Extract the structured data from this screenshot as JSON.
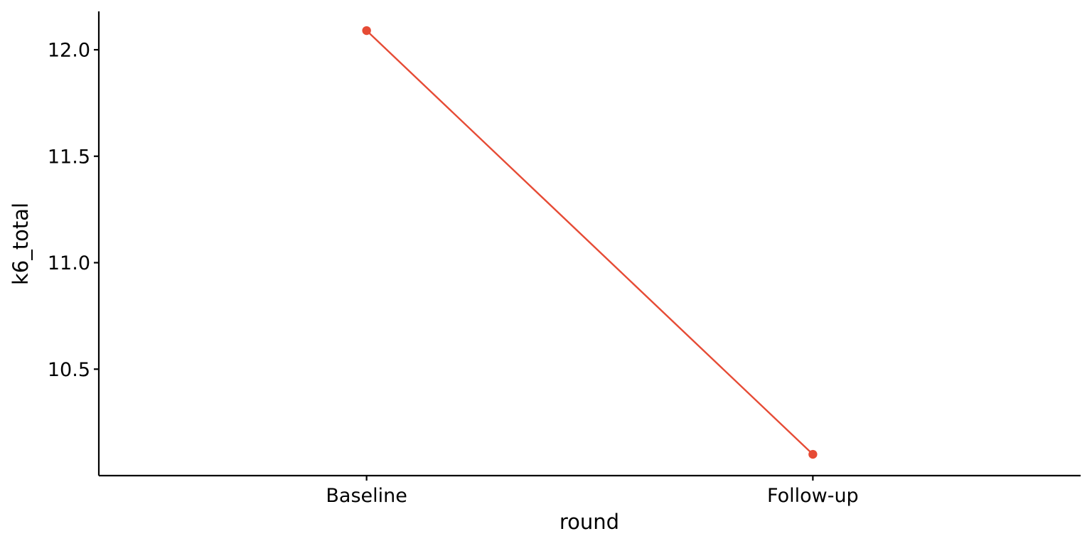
{
  "chart_data": {
    "type": "line",
    "title": "",
    "xlabel": "round",
    "ylabel": "k6_total",
    "categories": [
      "Baseline",
      "Follow-up"
    ],
    "series": [
      {
        "values": [
          12.09,
          10.1
        ],
        "color": "#E64B35"
      }
    ],
    "ylim": [
      10.0,
      12.19
    ],
    "yticks": [
      10.5,
      11.0,
      11.5,
      12.0
    ],
    "ytick_labels": [
      "10.5",
      "11.0",
      "11.5",
      "12.0"
    ],
    "grid": false,
    "legend": "none"
  }
}
